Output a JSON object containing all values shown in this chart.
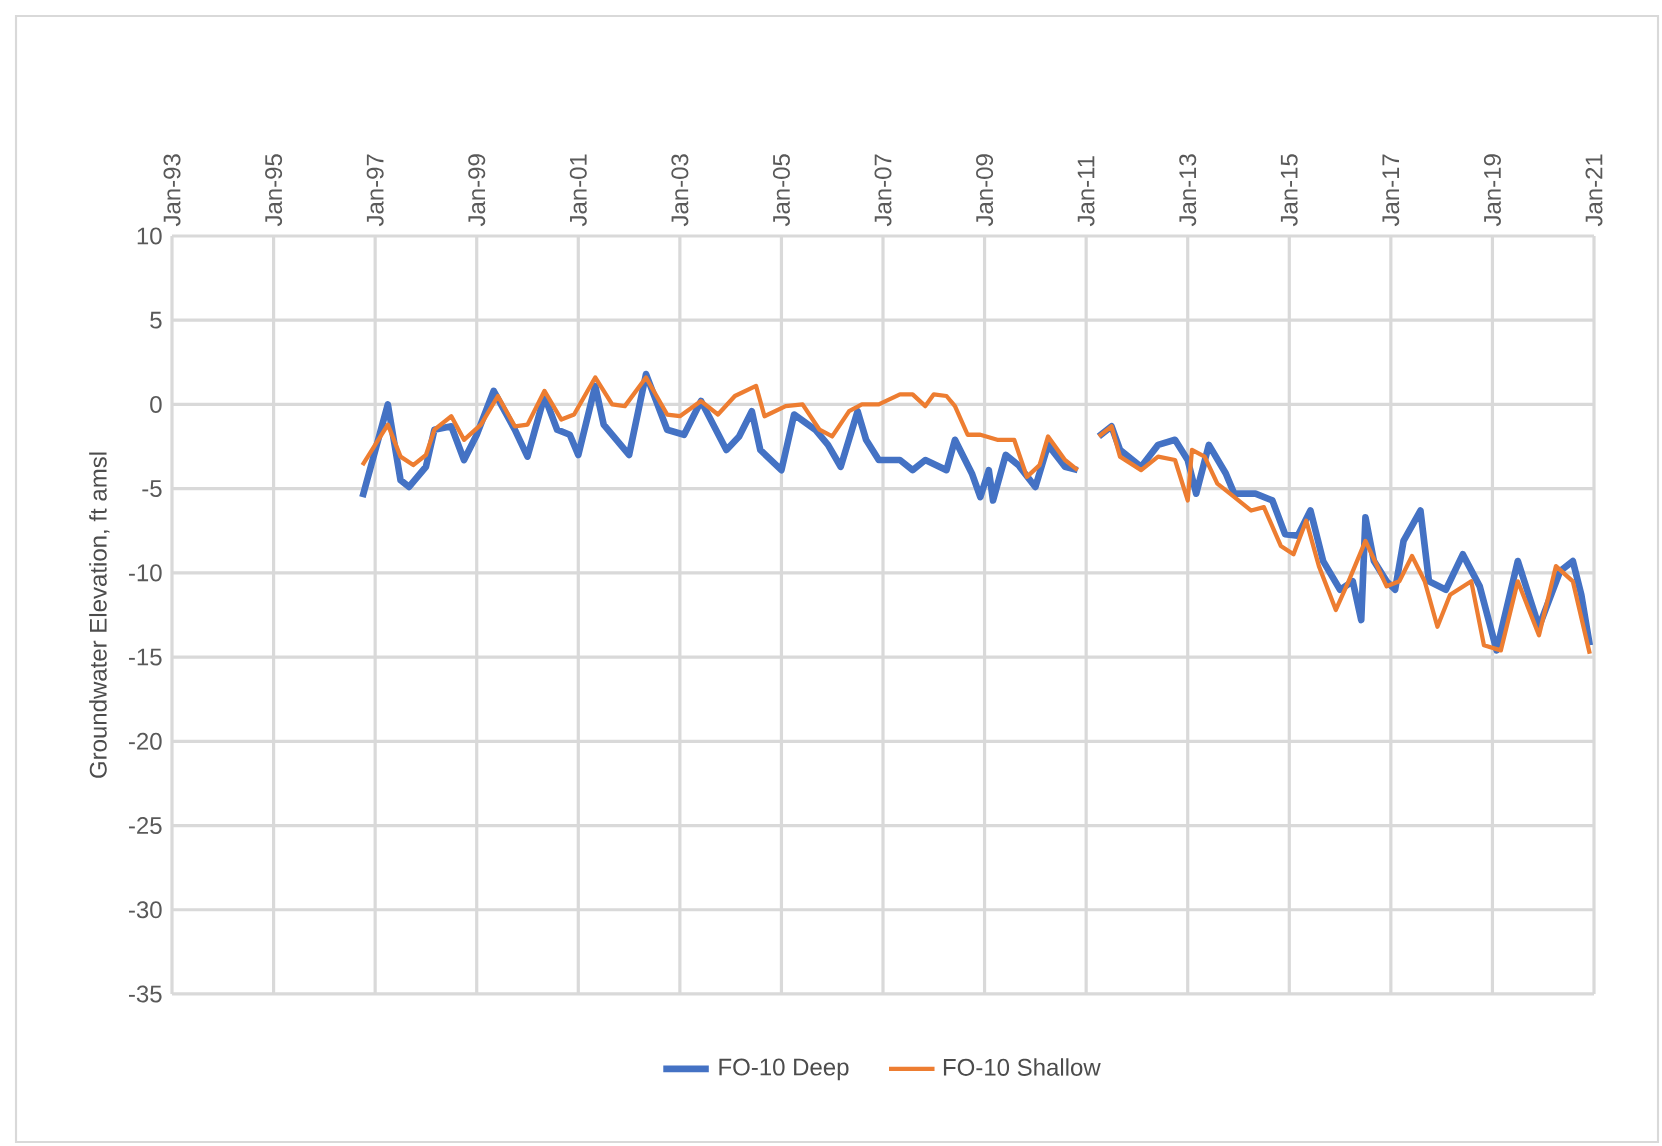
{
  "chart_data": {
    "type": "line",
    "ylabel": "Groundwater Elevation, ft amsl",
    "xlim": [
      "1993-01",
      "2021-01"
    ],
    "ylim": [
      -35,
      10
    ],
    "xticks": [
      {
        "value": "1993-01",
        "label": "Jan-93"
      },
      {
        "value": "1995-01",
        "label": "Jan-95"
      },
      {
        "value": "1997-01",
        "label": "Jan-97"
      },
      {
        "value": "1999-01",
        "label": "Jan-99"
      },
      {
        "value": "2001-01",
        "label": "Jan-01"
      },
      {
        "value": "2003-01",
        "label": "Jan-03"
      },
      {
        "value": "2005-01",
        "label": "Jan-05"
      },
      {
        "value": "2007-01",
        "label": "Jan-07"
      },
      {
        "value": "2009-01",
        "label": "Jan-09"
      },
      {
        "value": "2011-01",
        "label": "Jan-11"
      },
      {
        "value": "2013-01",
        "label": "Jan-13"
      },
      {
        "value": "2015-01",
        "label": "Jan-15"
      },
      {
        "value": "2017-01",
        "label": "Jan-17"
      },
      {
        "value": "2019-01",
        "label": "Jan-19"
      },
      {
        "value": "2021-01",
        "label": "Jan-21"
      }
    ],
    "yticks": [
      10,
      5,
      0,
      -5,
      -10,
      -15,
      -20,
      -25,
      -30,
      -35
    ],
    "grid": true,
    "legend": "bottom",
    "marker": "none",
    "line_style": "solid",
    "series": [
      {
        "name": "FO-10 Deep",
        "color": "#4472c4",
        "x": [
          "1996-10",
          "1997-04",
          "1997-07",
          "1997-09",
          "1998-01",
          "1998-03",
          "1998-07",
          "1998-10",
          "1999-01",
          "1999-05",
          "1999-10",
          "2000-01",
          "2000-05",
          "2000-08",
          "2000-11",
          "2001-01",
          "2001-05",
          "2001-07",
          "2002-01",
          "2002-05",
          "2002-10",
          "2003-02",
          "2003-06",
          "2003-12",
          "2004-03",
          "2004-06",
          "2004-08",
          "2005-01",
          "2005-04",
          "2005-09",
          "2005-12",
          "2006-03",
          "2006-07",
          "2006-09",
          "2006-12",
          "2007-05",
          "2007-08",
          "2007-11",
          "2008-04",
          "2008-06",
          "2008-10",
          "2008-12",
          "2009-02",
          "2009-03",
          "2009-06",
          "2009-09",
          "2010-01",
          "2010-04",
          "2010-08",
          "2010-11",
          "2011-02",
          "2011-04",
          "2011-07",
          "2011-09",
          "2012-02",
          "2012-06",
          "2012-10",
          "2013-01",
          "2013-03",
          "2013-06",
          "2013-10",
          "2013-12",
          "2014-05",
          "2014-09",
          "2014-12",
          "2015-03",
          "2015-06",
          "2015-09",
          "2016-01",
          "2016-04",
          "2016-06",
          "2016-07",
          "2016-09",
          "2016-12",
          "2017-02",
          "2017-04",
          "2017-08",
          "2017-10",
          "2018-02",
          "2018-06",
          "2018-10",
          "2019-02",
          "2019-07",
          "2019-12",
          "2020-05",
          "2020-08",
          "2020-10",
          "2020-12"
        ],
        "values": [
          -5.5,
          0,
          -4.5,
          -4.9,
          -3.7,
          -1.5,
          -1.3,
          -3.3,
          -1.8,
          0.8,
          -1.5,
          -3.1,
          0.5,
          -1.5,
          -1.8,
          -3,
          1.1,
          -1.2,
          -3,
          1.8,
          -1.5,
          -1.8,
          0.2,
          -2.7,
          -1.9,
          -0.4,
          -2.7,
          -3.9,
          -0.6,
          -1.5,
          -2.4,
          -3.7,
          -0.4,
          -2.1,
          -3.3,
          -3.3,
          -3.9,
          -3.3,
          -3.9,
          -2.1,
          -4.1,
          -5.5,
          -3.9,
          -5.7,
          -3,
          -3.6,
          -4.9,
          -2.4,
          -3.7,
          -3.9,
          null,
          -1.9,
          -1.3,
          -2.7,
          -3.7,
          -2.4,
          -2.1,
          -3.3,
          -5.3,
          -2.4,
          -4.1,
          -5.3,
          -5.3,
          -5.7,
          -7.7,
          -7.8,
          -6.3,
          -9.3,
          -11,
          -10.5,
          -12.8,
          -6.7,
          -9.3,
          -10.5,
          -11,
          -8.1,
          -6.3,
          -10.5,
          -11,
          -8.9,
          -10.8,
          -14.6,
          -9.3,
          -13.2,
          -9.9,
          -9.3,
          -11.3,
          -14.3
        ]
      },
      {
        "name": "FO-10 Shallow",
        "color": "#ed7d31",
        "x": [
          "1996-10",
          "1997-04",
          "1997-07",
          "1997-10",
          "1998-01",
          "1998-03",
          "1998-07",
          "1998-10",
          "1999-02",
          "1999-06",
          "1999-10",
          "2000-01",
          "2000-05",
          "2000-09",
          "2000-12",
          "2001-05",
          "2001-09",
          "2001-12",
          "2002-05",
          "2002-10",
          "2003-01",
          "2003-06",
          "2003-10",
          "2004-02",
          "2004-07",
          "2004-09",
          "2005-02",
          "2005-06",
          "2005-10",
          "2006-01",
          "2006-05",
          "2006-08",
          "2006-12",
          "2007-05",
          "2007-08",
          "2007-11",
          "2008-01",
          "2008-04",
          "2008-06",
          "2008-09",
          "2008-12",
          "2009-04",
          "2009-08",
          "2009-11",
          "2010-02",
          "2010-04",
          "2010-08",
          "2010-11",
          "2011-02",
          "2011-04",
          "2011-07",
          "2011-09",
          "2012-02",
          "2012-06",
          "2012-10",
          "2013-01",
          "2013-02",
          "2013-05",
          "2013-08",
          "2013-11",
          "2014-04",
          "2014-07",
          "2014-11",
          "2015-02",
          "2015-05",
          "2015-08",
          "2015-12",
          "2016-03",
          "2016-07",
          "2016-12",
          "2017-03",
          "2017-06",
          "2017-09",
          "2017-12",
          "2018-03",
          "2018-08",
          "2018-11",
          "2019-03",
          "2019-07",
          "2019-12",
          "2020-04",
          "2020-08",
          "2020-12"
        ],
        "values": [
          -3.6,
          -1.2,
          -3.1,
          -3.6,
          -3,
          -1.5,
          -0.7,
          -2.1,
          -1.2,
          0.5,
          -1.3,
          -1.2,
          0.8,
          -0.9,
          -0.6,
          1.6,
          0,
          -0.1,
          1.6,
          -0.6,
          -0.7,
          0.2,
          -0.6,
          0.5,
          1.1,
          -0.7,
          -0.1,
          0,
          -1.5,
          -1.9,
          -0.4,
          0,
          0,
          0.6,
          0.6,
          -0.1,
          0.6,
          0.5,
          -0.1,
          -1.8,
          -1.8,
          -2.1,
          -2.1,
          -4.3,
          -3.6,
          -1.9,
          -3.3,
          -3.9,
          null,
          -1.9,
          -1.3,
          -3.1,
          -3.9,
          -3.1,
          -3.3,
          -5.7,
          -2.7,
          -3.1,
          -4.7,
          -5.3,
          -6.3,
          -6.1,
          -8.4,
          -8.9,
          -6.9,
          -9.6,
          -12.2,
          -10.5,
          -8.1,
          -10.8,
          -10.5,
          -9,
          -10.5,
          -13.2,
          -11.3,
          -10.5,
          -14.3,
          -14.6,
          -10.5,
          -13.7,
          -9.6,
          -10.5,
          -14.8
        ]
      }
    ]
  }
}
